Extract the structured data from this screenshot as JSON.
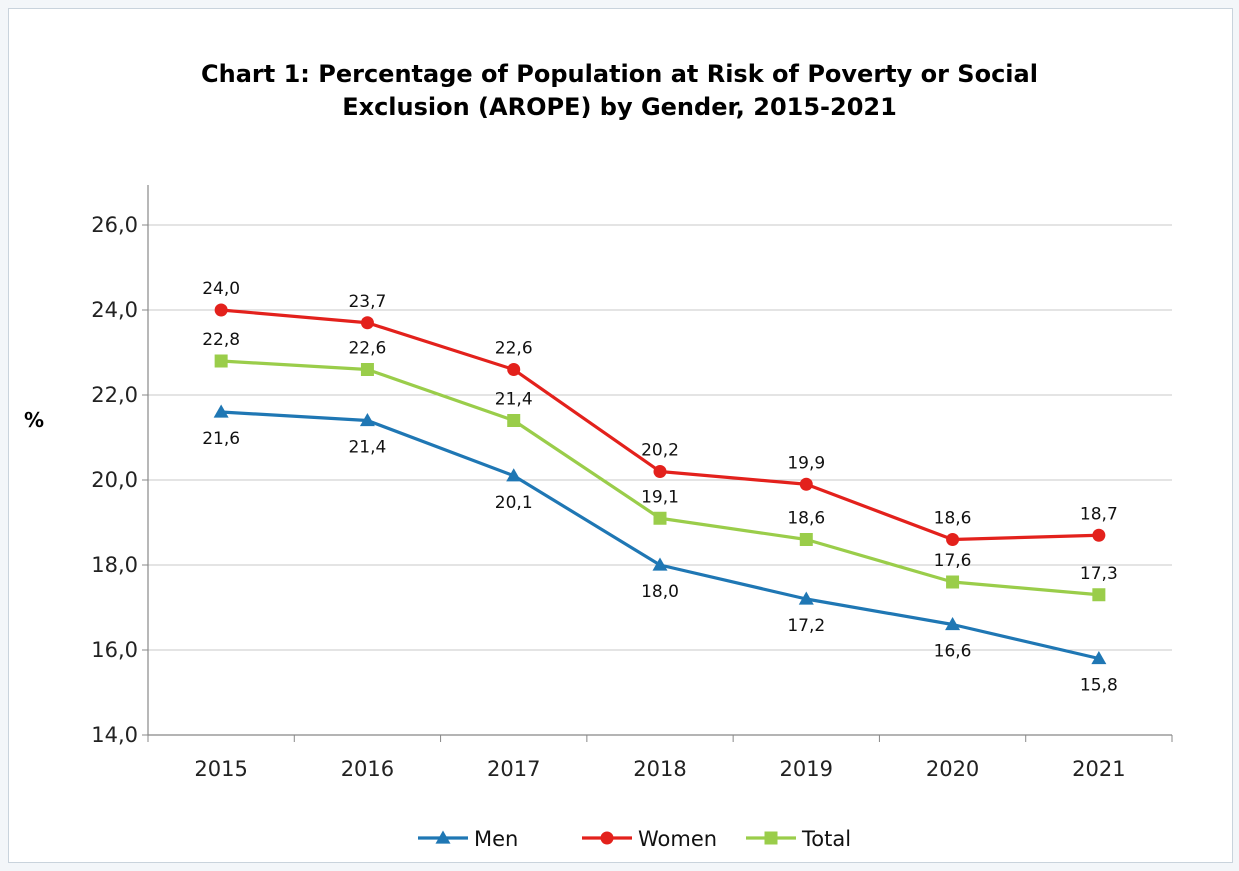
{
  "chart_data": {
    "type": "line",
    "title": "Chart 1: Percentage of Population at Risk of Poverty or Social\nExclusion (AROPE) by Gender, 2015-2021",
    "ylabel": "%",
    "xlabel": "",
    "categories": [
      "2015",
      "2016",
      "2017",
      "2018",
      "2019",
      "2020",
      "2021"
    ],
    "ylim": [
      14.0,
      26.0
    ],
    "yticks": [
      14.0,
      16.0,
      18.0,
      20.0,
      22.0,
      24.0,
      26.0
    ],
    "ytick_labels": [
      "14,0",
      "16,0",
      "18,0",
      "20,0",
      "22,0",
      "24,0",
      "26,0"
    ],
    "grid": "horizontal",
    "legend_position": "bottom",
    "series": [
      {
        "name": "Men",
        "color": "#1f77b4",
        "marker": "triangle",
        "values": [
          21.6,
          21.4,
          20.1,
          18.0,
          17.2,
          16.6,
          15.8
        ],
        "labels": [
          "21,6",
          "21,4",
          "20,1",
          "18,0",
          "17,2",
          "16,6",
          "15,8"
        ]
      },
      {
        "name": "Women",
        "color": "#e3211c",
        "marker": "circle",
        "values": [
          24.0,
          23.7,
          22.6,
          20.2,
          19.9,
          18.6,
          18.7
        ],
        "labels": [
          "24,0",
          "23,7",
          "22,6",
          "20,2",
          "19,9",
          "18,6",
          "18,7"
        ]
      },
      {
        "name": "Total",
        "color": "#9acd4a",
        "marker": "square",
        "values": [
          22.8,
          22.6,
          21.4,
          19.1,
          18.6,
          17.6,
          17.3
        ],
        "labels": [
          "22,8",
          "22,6",
          "21,4",
          "19,1",
          "18,6",
          "17,6",
          "17,3"
        ]
      }
    ]
  }
}
